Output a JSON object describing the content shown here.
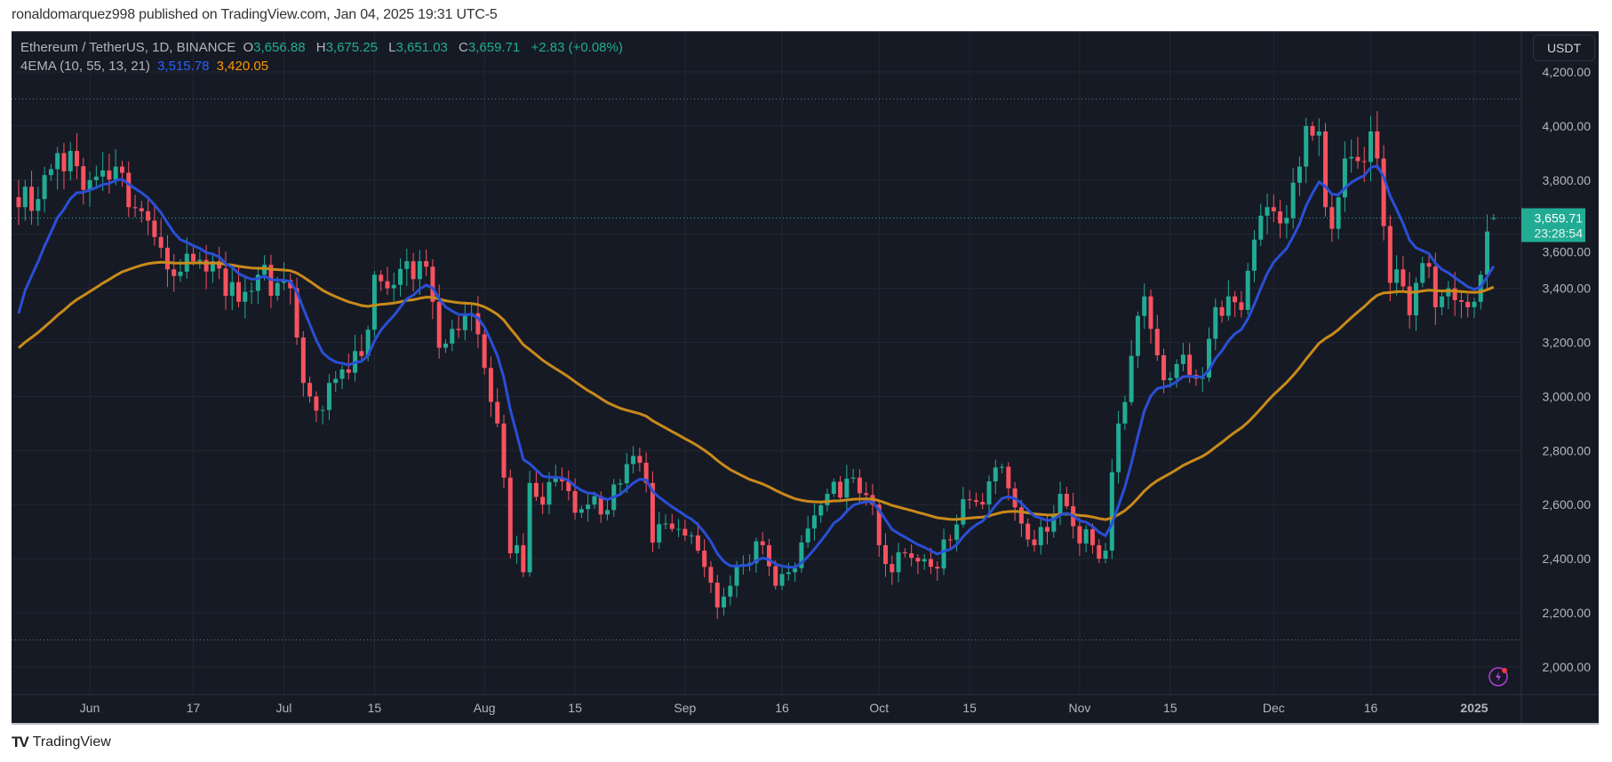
{
  "header": {
    "published": "ronaldomarquez998 published on TradingView.com, Jan 04, 2025 19:31 UTC-5"
  },
  "legend": {
    "symbol": "Ethereum / TetherUS, 1D, BINANCE",
    "o_label": "O",
    "o": "3,656.88",
    "h_label": "H",
    "h": "3,675.25",
    "l_label": "L",
    "l": "3,651.03",
    "c_label": "C",
    "c": "3,659.71",
    "change": "+2.83 (+0.08%)",
    "indicator": "4EMA (10, 55, 13, 21)",
    "ema_fast": "3,515.78",
    "ema_slow": "3,420.05"
  },
  "price_axis": {
    "currency_button": "USDT",
    "last_price": "3,659.71",
    "countdown": "23:28:54"
  },
  "footer": {
    "brand": "TradingView",
    "logo_text": "TV"
  },
  "colors": {
    "background": "#161a25",
    "up": "#22ab94",
    "down": "#f7525f",
    "ema_fast": "#2a4fd6",
    "ema_slow": "#c98a1a",
    "legend_fast": "#2962ff",
    "legend_slow": "#ff9800"
  },
  "chart_data": {
    "type": "candlestick",
    "title": "Ethereum / TetherUS, 1D, BINANCE",
    "ylim": [
      1880,
      4300
    ],
    "y_ticks": [
      2000,
      2200,
      2400,
      2600,
      2800,
      3000,
      3200,
      3400,
      3600,
      3800,
      4000,
      4200
    ],
    "y_tick_labels": [
      "2,000.00",
      "2,200.00",
      "2,400.00",
      "2,600.00",
      "2,800.00",
      "3,000.00",
      "3,200.00",
      "3,400.00",
      "3,600.00",
      "3,800.00",
      "4,000.00",
      "4,200.00"
    ],
    "x_range": [
      "2024-05-21",
      "2025-01-04"
    ],
    "x_ticks": [
      {
        "date": "2024-06-01",
        "label": "Jun"
      },
      {
        "date": "2024-06-17",
        "label": "17"
      },
      {
        "date": "2024-07-01",
        "label": "Jul"
      },
      {
        "date": "2024-07-15",
        "label": "15"
      },
      {
        "date": "2024-08-01",
        "label": "Aug"
      },
      {
        "date": "2024-08-15",
        "label": "15"
      },
      {
        "date": "2024-09-01",
        "label": "Sep"
      },
      {
        "date": "2024-09-16",
        "label": "16"
      },
      {
        "date": "2024-10-01",
        "label": "Oct"
      },
      {
        "date": "2024-10-15",
        "label": "15"
      },
      {
        "date": "2024-11-01",
        "label": "Nov"
      },
      {
        "date": "2024-11-15",
        "label": "15"
      },
      {
        "date": "2024-12-01",
        "label": "Dec"
      },
      {
        "date": "2024-12-16",
        "label": "16"
      },
      {
        "date": "2025-01-01",
        "label": "2025"
      }
    ],
    "horizontal_levels": [
      4100,
      2100
    ],
    "last_candle": {
      "date": "2025-01-04",
      "open": 3656.88,
      "high": 3675.25,
      "low": 3651.03,
      "close": 3659.71
    },
    "ema_seed": {
      "fast": 3220,
      "slow": 3160
    },
    "ema_last": {
      "fast": 3515.78,
      "slow": 3420.05
    },
    "close_keypoints": [
      [
        "2024-05-21",
        3700
      ],
      [
        "2024-05-24",
        3730
      ],
      [
        "2024-05-27",
        3900
      ],
      [
        "2024-06-01",
        3800
      ],
      [
        "2024-06-05",
        3850
      ],
      [
        "2024-06-07",
        3700
      ],
      [
        "2024-06-10",
        3650
      ],
      [
        "2024-06-12",
        3550
      ],
      [
        "2024-06-13",
        3470
      ],
      [
        "2024-06-17",
        3500
      ],
      [
        "2024-06-20",
        3500
      ],
      [
        "2024-06-24",
        3350
      ],
      [
        "2024-06-27",
        3450
      ],
      [
        "2024-06-30",
        3420
      ],
      [
        "2024-07-02",
        3400
      ],
      [
        "2024-07-04",
        3050
      ],
      [
        "2024-07-05",
        3000
      ],
      [
        "2024-07-07",
        2950
      ],
      [
        "2024-07-08",
        3050
      ],
      [
        "2024-07-10",
        3100
      ],
      [
        "2024-07-13",
        3150
      ],
      [
        "2024-07-15",
        3450
      ],
      [
        "2024-07-17",
        3400
      ],
      [
        "2024-07-20",
        3500
      ],
      [
        "2024-07-23",
        3480
      ],
      [
        "2024-07-24",
        3350
      ],
      [
        "2024-07-25",
        3180
      ],
      [
        "2024-07-27",
        3250
      ],
      [
        "2024-07-29",
        3300
      ],
      [
        "2024-07-31",
        3230
      ],
      [
        "2024-08-02",
        2980
      ],
      [
        "2024-08-03",
        2900
      ],
      [
        "2024-08-04",
        2700
      ],
      [
        "2024-08-05",
        2420
      ],
      [
        "2024-08-06",
        2450
      ],
      [
        "2024-08-07",
        2350
      ],
      [
        "2024-08-08",
        2680
      ],
      [
        "2024-08-10",
        2600
      ],
      [
        "2024-08-12",
        2700
      ],
      [
        "2024-08-14",
        2650
      ],
      [
        "2024-08-15",
        2570
      ],
      [
        "2024-08-17",
        2600
      ],
      [
        "2024-08-20",
        2580
      ],
      [
        "2024-08-23",
        2750
      ],
      [
        "2024-08-24",
        2780
      ],
      [
        "2024-08-26",
        2680
      ],
      [
        "2024-08-27",
        2460
      ],
      [
        "2024-08-29",
        2530
      ],
      [
        "2024-08-31",
        2510
      ],
      [
        "2024-09-03",
        2430
      ],
      [
        "2024-09-06",
        2220
      ],
      [
        "2024-09-08",
        2300
      ],
      [
        "2024-09-10",
        2380
      ],
      [
        "2024-09-13",
        2450
      ],
      [
        "2024-09-15",
        2300
      ],
      [
        "2024-09-17",
        2350
      ],
      [
        "2024-09-19",
        2460
      ],
      [
        "2024-09-21",
        2560
      ],
      [
        "2024-09-23",
        2640
      ],
      [
        "2024-09-27",
        2700
      ],
      [
        "2024-09-30",
        2600
      ],
      [
        "2024-10-01",
        2450
      ],
      [
        "2024-10-03",
        2350
      ],
      [
        "2024-10-05",
        2420
      ],
      [
        "2024-10-09",
        2370
      ],
      [
        "2024-10-12",
        2470
      ],
      [
        "2024-10-14",
        2620
      ],
      [
        "2024-10-16",
        2610
      ],
      [
        "2024-10-20",
        2740
      ],
      [
        "2024-10-21",
        2660
      ],
      [
        "2024-10-23",
        2530
      ],
      [
        "2024-10-25",
        2450
      ],
      [
        "2024-10-27",
        2500
      ],
      [
        "2024-10-29",
        2640
      ],
      [
        "2024-10-31",
        2520
      ],
      [
        "2024-11-03",
        2450
      ],
      [
        "2024-11-04",
        2400
      ],
      [
        "2024-11-05",
        2430
      ],
      [
        "2024-11-06",
        2720
      ],
      [
        "2024-11-07",
        2900
      ],
      [
        "2024-11-09",
        3150
      ],
      [
        "2024-11-11",
        3370
      ],
      [
        "2024-11-12",
        3250
      ],
      [
        "2024-11-14",
        3060
      ],
      [
        "2024-11-16",
        3120
      ],
      [
        "2024-11-18",
        3080
      ],
      [
        "2024-11-20",
        3070
      ],
      [
        "2024-11-22",
        3330
      ],
      [
        "2024-11-24",
        3370
      ],
      [
        "2024-11-26",
        3320
      ],
      [
        "2024-11-28",
        3580
      ],
      [
        "2024-11-30",
        3700
      ],
      [
        "2024-12-02",
        3640
      ],
      [
        "2024-12-05",
        3850
      ],
      [
        "2024-12-06",
        4000
      ],
      [
        "2024-12-08",
        3980
      ],
      [
        "2024-12-09",
        3700
      ],
      [
        "2024-12-10",
        3620
      ],
      [
        "2024-12-12",
        3880
      ],
      [
        "2024-12-14",
        3870
      ],
      [
        "2024-12-16",
        3980
      ],
      [
        "2024-12-17",
        3880
      ],
      [
        "2024-12-18",
        3630
      ],
      [
        "2024-12-19",
        3420
      ],
      [
        "2024-12-20",
        3470
      ],
      [
        "2024-12-22",
        3300
      ],
      [
        "2024-12-23",
        3420
      ],
      [
        "2024-12-25",
        3480
      ],
      [
        "2024-12-26",
        3330
      ],
      [
        "2024-12-28",
        3400
      ],
      [
        "2024-12-30",
        3350
      ],
      [
        "2024-12-31",
        3330
      ],
      [
        "2025-01-01",
        3350
      ],
      [
        "2025-01-02",
        3450
      ],
      [
        "2025-01-03",
        3610
      ],
      [
        "2025-01-04",
        3659.71
      ]
    ]
  }
}
